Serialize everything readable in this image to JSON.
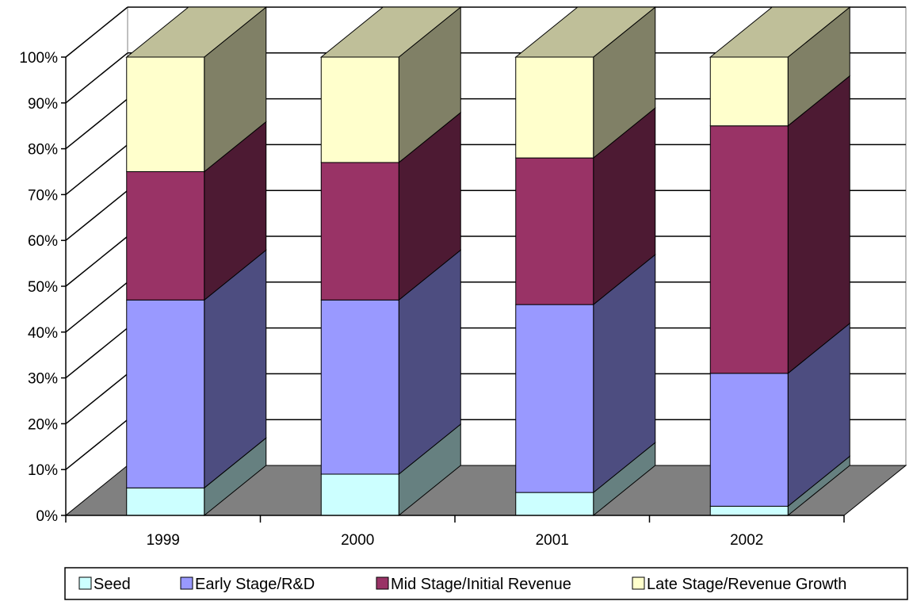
{
  "chart_data": {
    "type": "bar",
    "stacked": true,
    "percent_stacked": true,
    "three_d": true,
    "title": "",
    "xlabel": "",
    "ylabel": "",
    "categories": [
      "1999",
      "2000",
      "2001",
      "2002"
    ],
    "ylim": [
      0,
      100
    ],
    "y_ticks": [
      "0%",
      "10%",
      "20%",
      "30%",
      "40%",
      "50%",
      "60%",
      "70%",
      "80%",
      "90%",
      "100%"
    ],
    "grid": true,
    "legend_position": "bottom",
    "series": [
      {
        "name": "Seed",
        "values": [
          6,
          9,
          5,
          2
        ],
        "color": "#CCFFFF"
      },
      {
        "name": "Early Stage/R&D",
        "values": [
          41,
          38,
          41,
          29
        ],
        "color": "#9999FF"
      },
      {
        "name": "Mid Stage/Initial Revenue",
        "values": [
          28,
          30,
          32,
          54
        ],
        "color": "#993366"
      },
      {
        "name": "Late Stage/Revenue Growth",
        "values": [
          25,
          23,
          22,
          15
        ],
        "color": "#FFFFCC"
      }
    ]
  }
}
